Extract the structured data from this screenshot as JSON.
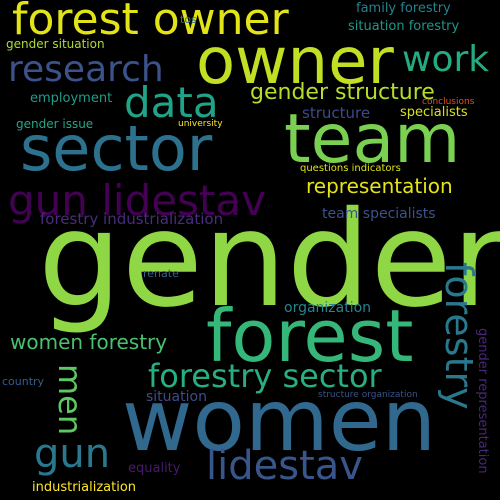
{
  "words": [
    {
      "text": "gender",
      "color": "#8fd744"
    },
    {
      "text": "women",
      "color": "#31688e"
    },
    {
      "text": "forest",
      "color": "#35b779"
    },
    {
      "text": "team",
      "color": "#7ad151"
    },
    {
      "text": "sector",
      "color": "#2c728e"
    },
    {
      "text": "owner",
      "color": "#c2df23"
    },
    {
      "text": "forest owner",
      "color": "#e3e418"
    },
    {
      "text": "gun lidestav",
      "color": "#440154"
    },
    {
      "text": "forestry sector",
      "color": "#28ae80"
    },
    {
      "text": "lidestav",
      "color": "#39568c"
    },
    {
      "text": "forestry",
      "color": "#2a788e"
    },
    {
      "text": "research",
      "color": "#3b528b"
    },
    {
      "text": "data",
      "color": "#20a386"
    },
    {
      "text": "work",
      "color": "#25ab82"
    },
    {
      "text": "gun",
      "color": "#2a788e"
    },
    {
      "text": "men",
      "color": "#5ec962"
    },
    {
      "text": "gender structure",
      "color": "#b5de2b"
    },
    {
      "text": "representation",
      "color": "#e5e419"
    },
    {
      "text": "women forestry",
      "color": "#4ac16d"
    },
    {
      "text": "forestry industrialization",
      "color": "#472d7b"
    },
    {
      "text": "team specialists",
      "color": "#3b528b"
    },
    {
      "text": "organization",
      "color": "#25848e"
    },
    {
      "text": "gender representation",
      "color": "#482878"
    },
    {
      "text": "structure",
      "color": "#3e4a89"
    },
    {
      "text": "employment",
      "color": "#1f9e89"
    },
    {
      "text": "gender situation",
      "color": "#addc30"
    },
    {
      "text": "gender issue",
      "color": "#22a785"
    },
    {
      "text": "family forestry",
      "color": "#26828e"
    },
    {
      "text": "situation forestry",
      "color": "#1f968b"
    },
    {
      "text": "specialists",
      "color": "#d8e219"
    },
    {
      "text": "situation",
      "color": "#3e4c8a"
    },
    {
      "text": "equality",
      "color": "#481a6c"
    },
    {
      "text": "industrialization",
      "color": "#fde725"
    },
    {
      "text": "questions indicators",
      "color": "#dde318"
    },
    {
      "text": "structure organization",
      "color": "#3b528b"
    },
    {
      "text": "country",
      "color": "#365c8d"
    },
    {
      "text": "conclusions",
      "color": "#e94e1b"
    },
    {
      "text": "university",
      "color": "#fde725"
    },
    {
      "text": "renate",
      "color": "#33638d"
    },
    {
      "text": "tos",
      "color": "#2c728e"
    }
  ]
}
